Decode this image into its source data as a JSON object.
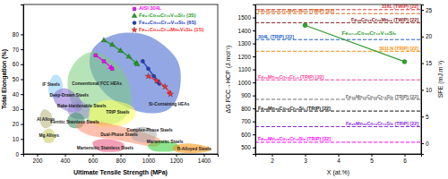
{
  "chart_data": [
    {
      "type": "scatter",
      "x_label": "Ultimate Tensile Strength (MPa)",
      "y_label": "Total Elongation (%)",
      "xlim": [
        100,
        1500
      ],
      "xticks": [
        200,
        400,
        600,
        800,
        1000,
        1200,
        1400
      ],
      "ylim": [
        0,
        100
      ],
      "yticks": [
        0,
        10,
        20,
        30,
        40,
        50,
        60,
        70,
        80
      ],
      "legend": "top-right",
      "regions": [
        {
          "name": "Si-Containing HEAs",
          "color": "#3a5fcd",
          "points": [
            [
              600,
              70
            ],
            [
              760,
              80
            ],
            [
              1000,
              79
            ],
            [
              1200,
              64
            ],
            [
              1230,
              45
            ],
            [
              1150,
              30
            ],
            [
              950,
              28
            ],
            [
              720,
              38
            ],
            [
              590,
              55
            ]
          ],
          "label_at": [
            1150,
            33
          ]
        },
        {
          "name": "Conventional FCC HEAs",
          "color": "#7ccd7c",
          "points": [
            [
              420,
              50
            ],
            [
              500,
              64
            ],
            [
              640,
              68
            ],
            [
              820,
              55
            ],
            [
              880,
              35
            ],
            [
              800,
              22
            ],
            [
              620,
              20
            ],
            [
              460,
              32
            ]
          ],
          "label_at": [
            630,
            47
          ]
        },
        {
          "name": "IF Steels",
          "color": "#87cefa",
          "points": [
            [
              280,
              44
            ],
            [
              310,
              52
            ],
            [
              360,
              52
            ],
            [
              385,
              45
            ],
            [
              360,
              38
            ],
            [
              300,
              38
            ]
          ],
          "label_at": [
            300,
            46
          ]
        },
        {
          "name": "Deep-Drawn Steels",
          "color": "#8a6dd6",
          "points": [
            [
              320,
              40
            ],
            [
              400,
              44
            ],
            [
              500,
              38
            ],
            [
              520,
              30
            ],
            [
              440,
              28
            ],
            [
              340,
              33
            ]
          ],
          "label_at": [
            430,
            39
          ]
        },
        {
          "name": "Bake-Hardenable Steels",
          "color": "#9b8fd6",
          "points": [
            [
              420,
              30
            ],
            [
              500,
              36
            ],
            [
              580,
              30
            ],
            [
              560,
              24
            ],
            [
              460,
              24
            ]
          ],
          "label_at": [
            520,
            32
          ]
        },
        {
          "name": "Al Alloys",
          "color": "#b5b57a",
          "points": [
            [
              220,
              26
            ],
            [
              250,
              30
            ],
            [
              300,
              27
            ],
            [
              310,
              20
            ],
            [
              260,
              17
            ],
            [
              225,
              20
            ]
          ],
          "label_at": [
            262,
            23
          ]
        },
        {
          "name": "Mg Alloys",
          "color": "#c8c85a",
          "points": [
            [
              240,
              14
            ],
            [
              290,
              17
            ],
            [
              330,
              13
            ],
            [
              310,
              8
            ],
            [
              255,
              8
            ]
          ],
          "label_at": [
            285,
            12
          ]
        },
        {
          "name": "TRIP Steels",
          "color": "#ffff55",
          "points": [
            [
              580,
              30
            ],
            [
              700,
              36
            ],
            [
              880,
              32
            ],
            [
              900,
              24
            ],
            [
              760,
              18
            ],
            [
              600,
              20
            ]
          ],
          "label_at": [
            780,
            28
          ]
        },
        {
          "name": "Ferritic Stainless Steels",
          "color": "#2e8b57",
          "points": [
            [
              420,
              24
            ],
            [
              480,
              28
            ],
            [
              540,
              24
            ],
            [
              520,
              18
            ],
            [
              440,
              18
            ]
          ],
          "label_at": [
            470,
            21
          ]
        },
        {
          "name": "Dual-Phase Steels",
          "color": "#ff8c69",
          "points": [
            [
              480,
              20
            ],
            [
              620,
              22
            ],
            [
              900,
              16
            ],
            [
              1080,
              10
            ],
            [
              1050,
              5
            ],
            [
              850,
              8
            ],
            [
              560,
              13
            ]
          ],
          "label_at": [
            790,
            13
          ]
        },
        {
          "name": "Martensitic Stainless Steels",
          "color": "#e8507a",
          "points": [
            [
              600,
              8
            ],
            [
              700,
              10
            ],
            [
              820,
              7
            ],
            [
              800,
              2
            ],
            [
              650,
              2
            ]
          ],
          "label_at": [
            690,
            4
          ]
        },
        {
          "name": "Complex-Phase Steels",
          "color": "#a9a9a9",
          "points": [
            [
              880,
              16
            ],
            [
              980,
              18
            ],
            [
              1060,
              14
            ],
            [
              1020,
              8
            ],
            [
              900,
              9
            ]
          ],
          "label_at": [
            1010,
            16
          ]
        },
        {
          "name": "Martensitic Steels",
          "color": "#32cd32",
          "points": [
            [
              1000,
              6
            ],
            [
              1100,
              9
            ],
            [
              1220,
              6
            ],
            [
              1180,
              2
            ],
            [
              1040,
              2
            ]
          ],
          "label_at": [
            1120,
            8
          ]
        },
        {
          "name": "B-Alloyed Steels",
          "color": "#ff8c00",
          "points": [
            [
              1180,
              5
            ],
            [
              1300,
              7
            ],
            [
              1450,
              4
            ],
            [
              1400,
              1
            ],
            [
              1220,
              1
            ]
          ],
          "label_at": [
            1330,
            3
          ]
        }
      ],
      "series": [
        {
          "name": "AISI 304L",
          "color": "#ff00ff",
          "marker": "square",
          "line_style": "arrow",
          "x": [
            620,
            680,
            740
          ],
          "values": [
            66,
            62,
            57
          ]
        },
        {
          "name": "Fe₄₇Co₃₀Cr₁₀V₁₀Si₃ (3S)",
          "color": "#1e9e1e",
          "marker": "triangle",
          "line_style": "arrow",
          "x": [
            680,
            740,
            800,
            860,
            920
          ],
          "values": [
            76,
            73,
            69,
            65,
            60
          ]
        },
        {
          "name": "Fe₄₄Co₃₀Cr₁₀V₁₀Si₆ (6S)",
          "color": "#1f3fbf",
          "marker": "circle",
          "line_style": "arrow",
          "x": [
            960,
            1000,
            1040,
            1080
          ],
          "values": [
            62,
            57,
            52,
            47
          ]
        },
        {
          "name": "Fe₄₂Co₃₀Cr₁₀Mn₅V₅Si₈ (1S)",
          "color": "#ff3030",
          "marker": "star",
          "line_style": "arrow",
          "x": [
            1000,
            1060,
            1120,
            1160
          ],
          "values": [
            52,
            49,
            45,
            40
          ]
        }
      ]
    },
    {
      "type": "line",
      "x_label": "X (at.%)",
      "y_label": "ΔG FCC→HCP (J.mol⁻¹)",
      "y2_label": "SFE (mJ.m⁻²)",
      "xlim": [
        1.5,
        6.5
      ],
      "xticks": [
        2,
        3,
        4,
        5,
        6
      ],
      "ylim": [
        450,
        1600
      ],
      "yticks": [
        500,
        600,
        700,
        800,
        900,
        1000,
        1100,
        1200,
        1300,
        1400,
        1500
      ],
      "y2lim": [
        -2,
        26
      ],
      "y2ticks": [
        0,
        5,
        10,
        15,
        20,
        25
      ],
      "hlines": [
        {
          "name": "316L (TWIP) [22]",
          "color": "#e03030",
          "value": 1560,
          "line_style": "dashed"
        },
        {
          "name": "Fe₂₀Co₂₀Cr₂₀Mn₂₀Ni₂₀ (TWIP) [22]",
          "color": "#d2691e",
          "value": 1530,
          "line_style": "dashed"
        },
        {
          "name": "Fe₄₀Co₂₀Cr₂₀Mn₂₀ (TWIP) [22]",
          "color": "#8b1a1a",
          "value": 1460,
          "line_style": "dashed"
        },
        {
          "name": "304L (TRIP) [22]",
          "color": "#1f5fd0",
          "value": 1330,
          "line_style": "dashed"
        },
        {
          "name": "301LN (TRIP) [22]",
          "color": "#ff8c00",
          "value": 1240,
          "line_style": "dashed"
        },
        {
          "name": "Fe₅₀Mn₃₀Co₁₀Cr₁₀ (TRIP) [22]",
          "color": "#ff3fa0",
          "value": 1020,
          "line_style": "dashed"
        },
        {
          "name": "Fe₄₀Mn₂₀Co₂₀Cr₁₅Si₅ (TRIP) [22]",
          "color": "#707070",
          "value": 870,
          "line_style": "dashed"
        },
        {
          "name": "Fe₄₉Mn₃₀Co₁₀Cr₁₀Si₁ (TRIP) [22]",
          "color": "#111111",
          "value": 780,
          "line_style": "dashed"
        },
        {
          "name": "Fe₄₅Mn₃₀Co₁₀Cr₁₀Si₅ (TRIP) [22]",
          "color": "#8a2be2",
          "value": 660,
          "line_style": "dashed"
        },
        {
          "name": "Fe₄₂Mn₂₈Co₁₀Cr₁₅Si₅ (TRIP) [22]",
          "color": "#ff00ff",
          "value": 540,
          "line_style": "dashed"
        }
      ],
      "series": [
        {
          "name": "Fe₄₇₋ₓCo₃₀Cr₁₀V₁₀Siₓ",
          "color": "#2e9e2e",
          "marker": "circle",
          "x": [
            3,
            6
          ],
          "values": [
            1440,
            1160
          ]
        }
      ]
    }
  ]
}
